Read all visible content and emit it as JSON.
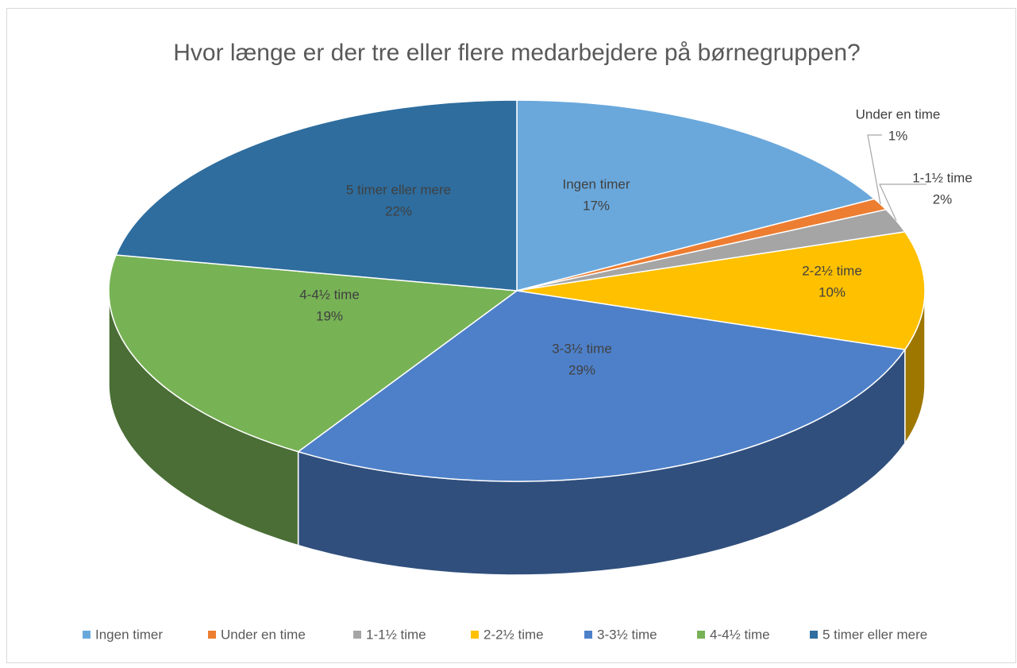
{
  "chart_data": {
    "type": "pie3d",
    "title": "Hvor længe er der tre eller flere medarbejdere på børnegruppen?",
    "categories": [
      "Ingen timer",
      "Under en time",
      "1-1½ time",
      "2-2½ time",
      "3-3½ time",
      "4-4½ time",
      "5 timer eller mere"
    ],
    "values": [
      17,
      1,
      2,
      10,
      29,
      19,
      22
    ],
    "value_labels": [
      "17%",
      "1%",
      "2%",
      "10%",
      "29%",
      "19%",
      "22%"
    ],
    "colors": [
      "#6aa8dc",
      "#ed7d31",
      "#a5a5a5",
      "#ffc000",
      "#4e80c9",
      "#77b255",
      "#2e6d9e"
    ],
    "legend": "bottom"
  }
}
